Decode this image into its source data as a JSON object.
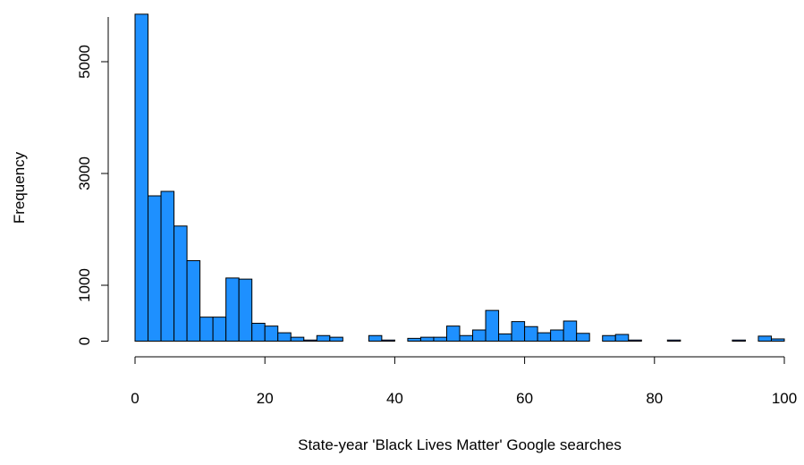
{
  "chart_data": {
    "type": "bar",
    "title": "",
    "xlabel": "State-year 'Black Lives Matter' Google searches",
    "ylabel": "Frequency",
    "xlim": [
      0,
      100
    ],
    "ylim": [
      0,
      6000
    ],
    "x_ticks": [
      0,
      20,
      40,
      60,
      80,
      100
    ],
    "x_tick_labels": [
      "0",
      "20",
      "40",
      "60",
      "80",
      "100"
    ],
    "y_ticks": [
      0,
      1000,
      3000,
      5000
    ],
    "y_tick_labels": [
      "0",
      "1000",
      "3000",
      "5000"
    ],
    "bin_width": 2,
    "bin_starts": [
      0,
      2,
      4,
      6,
      8,
      10,
      12,
      14,
      16,
      18,
      20,
      22,
      24,
      26,
      28,
      30,
      32,
      34,
      36,
      38,
      40,
      42,
      44,
      46,
      48,
      50,
      52,
      54,
      56,
      58,
      60,
      62,
      64,
      66,
      68,
      70,
      72,
      74,
      76,
      78,
      80,
      82,
      84,
      86,
      88,
      90,
      92,
      94,
      96,
      98
    ],
    "values": [
      5850,
      2600,
      2680,
      2060,
      1440,
      430,
      430,
      1130,
      1110,
      320,
      270,
      150,
      70,
      20,
      100,
      70,
      0,
      0,
      100,
      20,
      0,
      50,
      70,
      70,
      270,
      100,
      200,
      550,
      130,
      350,
      260,
      150,
      200,
      360,
      140,
      0,
      100,
      120,
      20,
      0,
      0,
      20,
      0,
      0,
      0,
      0,
      20,
      0,
      90,
      40
    ],
    "grid": false,
    "legend": "none",
    "bar_fill": "#1E90FF",
    "bar_stroke": "#000000"
  }
}
